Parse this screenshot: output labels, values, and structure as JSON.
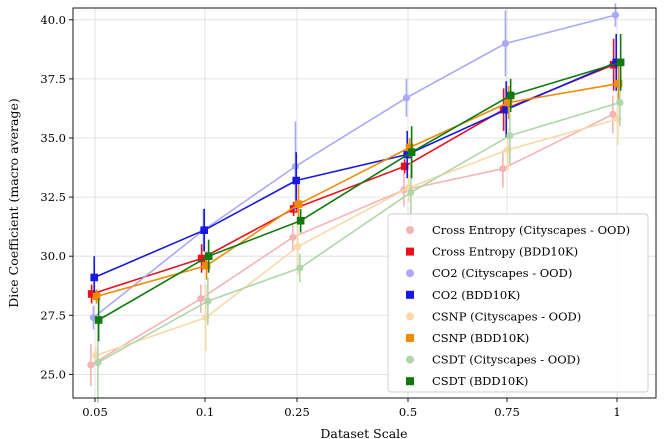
{
  "chart_data": {
    "type": "line",
    "title": "",
    "xlabel": "Dataset Scale",
    "ylabel": "Dice Coefficient (macro average)",
    "ylim": [
      24.0,
      40.5
    ],
    "yticks": [
      25.0,
      27.5,
      30.0,
      32.5,
      35.0,
      37.5,
      40.0
    ],
    "ytick_labels": [
      "25.0",
      "27.5",
      "30.0",
      "32.5",
      "35.0",
      "37.5",
      "40.0"
    ],
    "categories": [
      "0.05",
      "0.1",
      "0.25",
      "0.5",
      "0.75",
      "1"
    ],
    "grid": true,
    "legend_position": "bottom-right",
    "series": [
      {
        "name": "Cross Entropy (Cityscapes - OOD)",
        "color": "#f4b4b4",
        "marker": "circle",
        "offset": -0.16,
        "values": [
          25.4,
          28.2,
          30.8,
          32.8,
          33.7,
          36.0
        ],
        "err": [
          0.9,
          0.6,
          0.6,
          0.7,
          0.8,
          0.8
        ]
      },
      {
        "name": "Cross Entropy (BDD10K)",
        "color": "#e8111c",
        "marker": "square",
        "offset": -0.13,
        "values": [
          28.4,
          29.9,
          32.0,
          33.8,
          36.2,
          38.1
        ],
        "err": [
          0.4,
          0.6,
          0.3,
          0.3,
          0.9,
          1.1
        ]
      },
      {
        "name": "CO2 (Cityscapes - OOD)",
        "color": "#aaaaf4",
        "marker": "circle",
        "offset": -0.06,
        "values": [
          27.4,
          31.1,
          33.8,
          36.7,
          39.0,
          40.2
        ],
        "err": [
          0.5,
          0.9,
          1.9,
          0.8,
          1.4,
          0.5
        ]
      },
      {
        "name": "CO2 (BDD10K)",
        "color": "#1818e0",
        "marker": "square",
        "offset": -0.03,
        "values": [
          29.1,
          31.1,
          33.2,
          34.3,
          36.2,
          38.2
        ],
        "err": [
          0.9,
          0.9,
          1.2,
          1.0,
          1.2,
          1.2
        ]
      },
      {
        "name": "CSNP (Cityscapes - OOD)",
        "color": "#fad9a8",
        "marker": "circle",
        "offset": 0.03,
        "values": [
          25.8,
          27.4,
          30.4,
          32.9,
          34.5,
          35.8
        ],
        "err": [
          0.4,
          1.4,
          1.2,
          0.6,
          0.9,
          1.1
        ]
      },
      {
        "name": "CSNP (BDD10K)",
        "color": "#f18b06",
        "marker": "square",
        "offset": 0.06,
        "values": [
          28.3,
          29.6,
          32.2,
          34.6,
          36.5,
          37.3
        ],
        "err": [
          0.3,
          0.6,
          0.8,
          0.4,
          0.7,
          0.9
        ]
      },
      {
        "name": "CSDT (Cityscapes - OOD)",
        "color": "#aed6a8",
        "marker": "circle",
        "offset": 0.11,
        "values": [
          25.5,
          28.1,
          29.5,
          32.7,
          35.1,
          36.5
        ],
        "err": [
          1.7,
          1.0,
          0.6,
          1.3,
          1.2,
          1.0
        ]
      },
      {
        "name": "CSDT (BDD10K)",
        "color": "#0e7a0e",
        "marker": "square",
        "offset": 0.14,
        "values": [
          27.3,
          30.0,
          31.5,
          34.4,
          36.8,
          38.2
        ],
        "err": [
          0.9,
          0.7,
          0.5,
          1.1,
          0.7,
          1.2
        ]
      }
    ]
  }
}
